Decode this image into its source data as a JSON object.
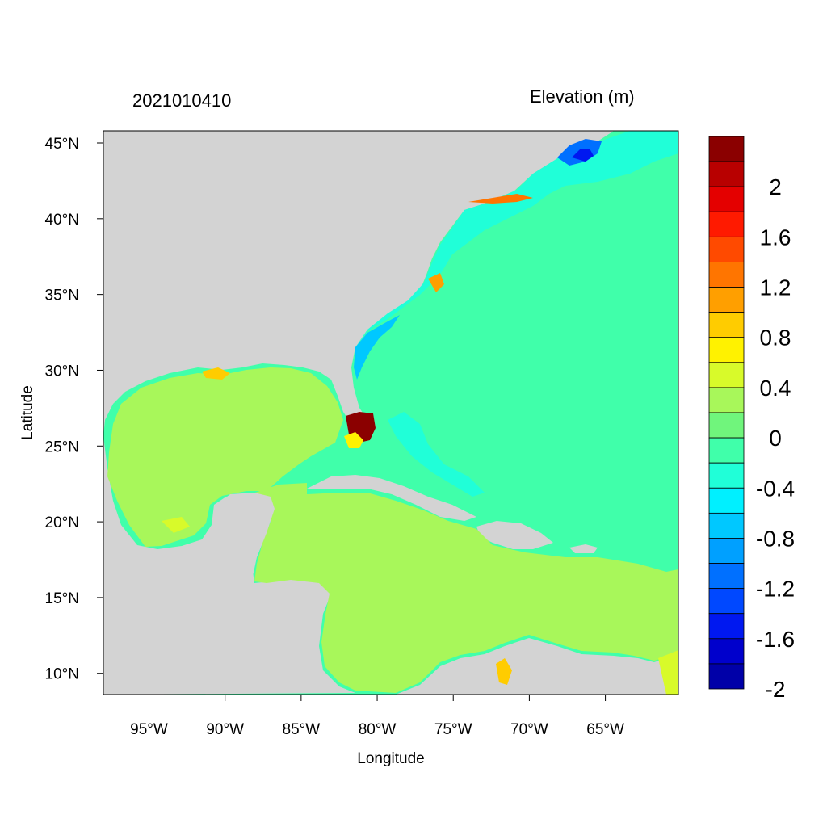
{
  "map": {
    "left_title": "2021010410",
    "right_title": "Elevation (m)",
    "x_axis_label": "Longitude",
    "y_axis_label": "Latitude",
    "extent": {
      "lon": [
        -98,
        -60.2
      ],
      "lat": [
        8.6,
        45.8
      ]
    },
    "lon_ticks": [
      {
        "value": -95,
        "label": "95°W"
      },
      {
        "value": -90,
        "label": "90°W"
      },
      {
        "value": -85,
        "label": "85°W"
      },
      {
        "value": -80,
        "label": "80°W"
      },
      {
        "value": -75,
        "label": "75°W"
      },
      {
        "value": -70,
        "label": "70°W"
      },
      {
        "value": -65,
        "label": "65°W"
      }
    ],
    "lat_ticks": [
      {
        "value": 45,
        "label": "45°N"
      },
      {
        "value": 40,
        "label": "40°N"
      },
      {
        "value": 35,
        "label": "35°N"
      },
      {
        "value": 30,
        "label": "30°N"
      },
      {
        "value": 25,
        "label": "25°N"
      },
      {
        "value": 20,
        "label": "20°N"
      },
      {
        "value": 15,
        "label": "15°N"
      },
      {
        "value": 10,
        "label": "10°N"
      }
    ],
    "colors": {
      "land": "#d3d3d3",
      "gulf_caribbean": "#a8f75a",
      "atlantic": "#40ffaa",
      "shelf": "#20ffd8",
      "surge": "#8b0000"
    }
  },
  "colorbar": {
    "colors_top_to_bottom": [
      "#8b0000",
      "#b80000",
      "#e40000",
      "#ff1a00",
      "#ff4a00",
      "#ff7500",
      "#ff9f00",
      "#ffcc00",
      "#fff200",
      "#d8fa2a",
      "#a8f75a",
      "#70f57c",
      "#40ffaa",
      "#20ffd8",
      "#00f0ff",
      "#00c8ff",
      "#00a0ff",
      "#0070ff",
      "#0048ff",
      "#0018f0",
      "#0000cc",
      "#0000a8"
    ],
    "labels": [
      "2",
      "1.6",
      "1.2",
      "0.8",
      "0.4",
      "0",
      "-0.4",
      "-0.8",
      "-1.2",
      "-1.6",
      "-2"
    ]
  }
}
